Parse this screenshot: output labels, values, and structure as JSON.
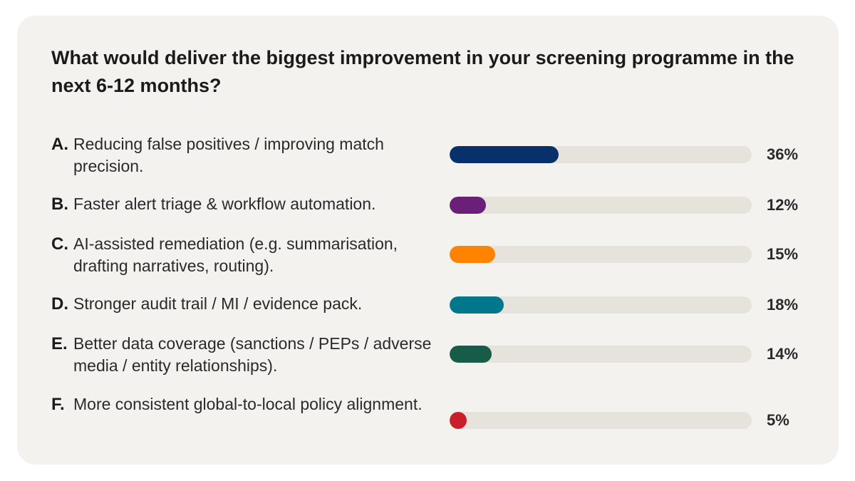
{
  "chart_data": {
    "type": "bar",
    "title": "What would deliver the biggest improvement in your screening programme in the next 6-12 months?",
    "xlabel": "",
    "ylabel": "",
    "ylim": [
      0,
      100
    ],
    "categories": [
      "A.",
      "B.",
      "C.",
      "D.",
      "E.",
      "F."
    ],
    "values": [
      36,
      12,
      15,
      18,
      14,
      5
    ],
    "items": [
      {
        "letter": "A.",
        "label": "Reducing false positives / improving match precision.",
        "value": 36,
        "value_label": "36%",
        "color": "#08306b"
      },
      {
        "letter": "B.",
        "label": "Faster alert triage & workflow automation.",
        "value": 12,
        "value_label": "12%",
        "color": "#6a1f78"
      },
      {
        "letter": "C.",
        "label": "AI-assisted remediation (e.g. summarisation, drafting narratives, routing).",
        "value": 15,
        "value_label": "15%",
        "color": "#ff8200"
      },
      {
        "letter": "D.",
        "label": "Stronger audit trail / MI / evidence pack.",
        "value": 18,
        "value_label": "18%",
        "color": "#00778b"
      },
      {
        "letter": "E.",
        "label": "Better data coverage (sanctions / PEPs / adverse media / entity relationships).",
        "value": 14,
        "value_label": "14%",
        "color": "#175c48"
      },
      {
        "letter": "F.",
        "label": "More consistent global-to-local policy alignment.",
        "value": 5,
        "value_label": "5%",
        "color": "#c8202a"
      }
    ],
    "track_color": "#e6e2dc",
    "grid": false,
    "legend": "none"
  }
}
